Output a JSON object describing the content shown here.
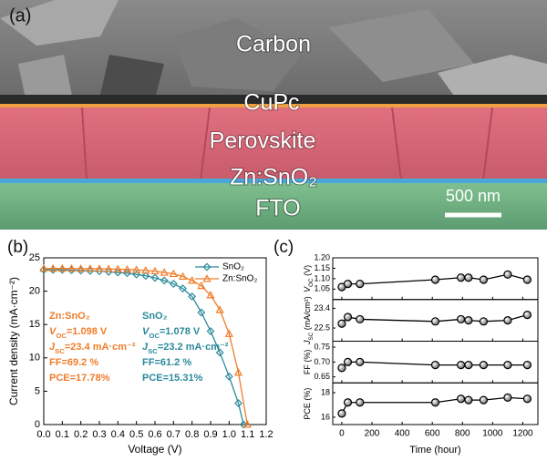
{
  "panel_a": {
    "label": "(a)",
    "layers": [
      "Carbon",
      "CuPc",
      "Perovskite",
      "Zn:SnO₂",
      "FTO"
    ],
    "scale_bar": "500 nm"
  },
  "chart_data": [
    {
      "type": "line",
      "panel_label": "(b)",
      "x_label": "Voltage (V)",
      "y_label": "Current density (mA·cm⁻²)",
      "xlim": [
        0,
        1.2
      ],
      "xticks": [
        {
          "value": 0,
          "label": "0.0"
        },
        0.1,
        0.2,
        0.3,
        0.4,
        0.5,
        0.6,
        0.7,
        0.8,
        0.9,
        {
          "value": 1,
          "label": "1.0"
        },
        1.1,
        1.2
      ],
      "ylim": [
        0,
        25
      ],
      "yticks": [
        0,
        5,
        10,
        15,
        20,
        25
      ],
      "legend": "upper right",
      "series": [
        {
          "name": "SnO₂",
          "color": "#2b8a9c",
          "marker": "diamond",
          "x": [
            0,
            0.05,
            0.1,
            0.15,
            0.2,
            0.25,
            0.3,
            0.35,
            0.4,
            0.45,
            0.5,
            0.55,
            0.6,
            0.65,
            0.7,
            0.75,
            0.8,
            0.85,
            0.9,
            0.95,
            1.0,
            1.05,
            1.078
          ],
          "values": [
            23.2,
            23.2,
            23.2,
            23.15,
            23.1,
            23.05,
            23.0,
            22.9,
            22.8,
            22.7,
            22.5,
            22.3,
            22.0,
            21.6,
            21.1,
            20.4,
            19.2,
            16.8,
            14.0,
            10.8,
            7.2,
            3.2,
            0
          ]
        },
        {
          "name": "Zn:SnO₂",
          "color": "#f07d2a",
          "marker": "triangle",
          "x": [
            0,
            0.05,
            0.1,
            0.15,
            0.2,
            0.25,
            0.3,
            0.35,
            0.4,
            0.45,
            0.5,
            0.55,
            0.6,
            0.65,
            0.7,
            0.75,
            0.8,
            0.85,
            0.9,
            0.95,
            1.0,
            1.05,
            1.098
          ],
          "values": [
            23.4,
            23.4,
            23.4,
            23.4,
            23.38,
            23.37,
            23.35,
            23.33,
            23.3,
            23.25,
            23.2,
            23.1,
            23.0,
            22.8,
            22.6,
            22.2,
            21.6,
            20.8,
            19.4,
            17.2,
            13.6,
            7.8,
            0
          ]
        }
      ],
      "annotations": [
        {
          "color": "#f07d2a",
          "lines": [
            [
              {
                "text": "Zn:SnO₂"
              }
            ],
            [
              {
                "text": "V",
                "style": "italic"
              },
              {
                "text": "OC",
                "style": "sub"
              },
              {
                "text": "=1.098 V"
              }
            ],
            [
              {
                "text": "J",
                "style": "italic"
              },
              {
                "text": "SC",
                "style": "sub"
              },
              {
                "text": "=23.4 mA·cm⁻²"
              }
            ],
            [
              {
                "text": "FF=69.2 %"
              }
            ],
            [
              {
                "text": "PCE=17.78%"
              }
            ]
          ]
        },
        {
          "color": "#2b8a9c",
          "lines": [
            [
              {
                "text": "SnO₂"
              }
            ],
            [
              {
                "text": "V",
                "style": "italic"
              },
              {
                "text": "OC",
                "style": "sub"
              },
              {
                "text": "=1.078 V"
              }
            ],
            [
              {
                "text": "J",
                "style": "italic"
              },
              {
                "text": "SC",
                "style": "sub"
              },
              {
                "text": "=23.2 mA·cm⁻²"
              }
            ],
            [
              {
                "text": "FF=61.2 %"
              }
            ],
            [
              {
                "text": "PCE=15.31%"
              }
            ]
          ]
        }
      ]
    },
    {
      "type": "line",
      "panel_label": "(c)",
      "x_label": "Time (hour)",
      "xlim": [
        -60,
        1300
      ],
      "xticks": [
        0,
        200,
        400,
        600,
        800,
        1000,
        1200
      ],
      "x": [
        0,
        40,
        120,
        620,
        790,
        840,
        940,
        1100,
        1230
      ],
      "color": "#000000",
      "marker": "circle",
      "panels": [
        {
          "y_label": [
            {
              "text": "V",
              "style": "italic"
            },
            {
              "text": "OC",
              "style": "sub"
            },
            {
              "text": " (V)"
            }
          ],
          "ylim": [
            1.0,
            1.2
          ],
          "yticks": [
            {
              "value": 1.05,
              "label": "1.05"
            },
            {
              "value": 1.1,
              "label": "1.10"
            },
            {
              "value": 1.15,
              "label": "1.15"
            },
            {
              "value": 1.2,
              "label": "1.20"
            }
          ],
          "values": [
            1.06,
            1.075,
            1.075,
            1.095,
            1.105,
            1.105,
            1.095,
            1.12,
            1.095
          ]
        },
        {
          "y_label": [
            {
              "text": "J",
              "style": "italic"
            },
            {
              "text": "SC",
              "style": "sub"
            },
            {
              "text": " (mA/cm²)"
            }
          ],
          "ylim": [
            21.9,
            23.8
          ],
          "yticks": [
            22.5,
            23.4
          ],
          "values": [
            22.7,
            23.0,
            22.9,
            22.8,
            22.9,
            22.85,
            22.8,
            22.85,
            23.1
          ]
        },
        {
          "y_label": [
            {
              "text": "FF (%)"
            }
          ],
          "ylim": [
            0.63,
            0.77
          ],
          "yticks": [
            0.65,
            {
              "value": 0.7,
              "label": "0.70"
            },
            0.75
          ],
          "values": [
            0.68,
            0.7,
            0.7,
            0.69,
            0.69,
            0.69,
            0.69,
            0.69,
            0.69
          ]
        },
        {
          "y_label": [
            {
              "text": "PCE (%)"
            }
          ],
          "ylim": [
            15.4,
            18.8
          ],
          "yticks": [
            16,
            18
          ],
          "values": [
            16.3,
            17.2,
            17.2,
            17.2,
            17.5,
            17.4,
            17.4,
            17.6,
            17.5
          ]
        }
      ]
    }
  ]
}
